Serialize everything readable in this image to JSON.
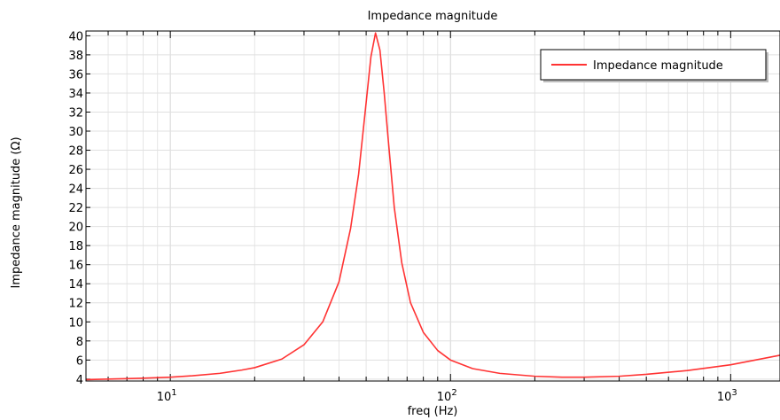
{
  "chart_data": {
    "type": "line",
    "title": "Impedance magnitude",
    "xlabel": "freq (Hz)",
    "ylabel": "Impedance magnitude (Ω)",
    "xscale": "log",
    "xlim": [
      5,
      1500
    ],
    "ylim": [
      3.8,
      40.5
    ],
    "grid": true,
    "legend_position": "top-right",
    "y_ticks": [
      4,
      6,
      8,
      10,
      12,
      14,
      16,
      18,
      20,
      22,
      24,
      26,
      28,
      30,
      32,
      34,
      36,
      38,
      40
    ],
    "x_major_ticks": [
      {
        "value": 10,
        "base": "10",
        "exp": "1"
      },
      {
        "value": 100,
        "base": "10",
        "exp": "2"
      },
      {
        "value": 1000,
        "base": "10",
        "exp": "3"
      }
    ],
    "series": [
      {
        "name": "Impedance magnitude",
        "color": "#ff3333",
        "x": [
          5,
          6,
          7,
          8,
          10,
          12,
          15,
          18,
          20,
          25,
          30,
          35,
          40,
          44,
          47,
          50,
          52,
          54,
          56,
          58,
          60,
          63,
          67,
          72,
          80,
          90,
          100,
          120,
          150,
          200,
          250,
          300,
          400,
          500,
          700,
          1000,
          1500
        ],
        "y": [
          3.95,
          4.0,
          4.05,
          4.1,
          4.2,
          4.35,
          4.6,
          4.95,
          5.2,
          6.1,
          7.6,
          10.0,
          14.2,
          19.8,
          25.5,
          33.0,
          37.8,
          40.3,
          38.5,
          34.0,
          29.0,
          22.0,
          16.2,
          12.0,
          8.9,
          7.0,
          6.0,
          5.1,
          4.6,
          4.3,
          4.2,
          4.2,
          4.3,
          4.5,
          4.9,
          5.5,
          6.5
        ]
      }
    ]
  }
}
